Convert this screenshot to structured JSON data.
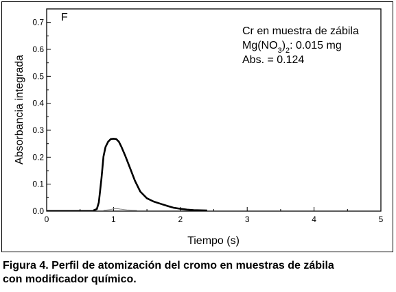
{
  "chart_data": {
    "type": "line",
    "panel_label": "F",
    "xlabel": "Tiempo (s)",
    "ylabel": "Absorbancia integrada",
    "xlim": [
      0,
      5
    ],
    "ylim": [
      0,
      0.75
    ],
    "xticks": [
      "0",
      "1",
      "2",
      "3",
      "4",
      "5"
    ],
    "yticks": [
      "0.0",
      "0.1",
      "0.2",
      "0.3",
      "0.4",
      "0.5",
      "0.6",
      "0.7"
    ],
    "grid": false,
    "annotations": {
      "line1": "Cr en muestra de zábila",
      "line2_main": "Mg(NO",
      "line2_sub": "3",
      "line2_close": ")",
      "line2_sub2": "2",
      "line2_rest": ": 0.015 mg",
      "line3": "Abs. = 0.124"
    },
    "series": [
      {
        "color": "#000000",
        "x": [
          0.7,
          0.75,
          0.78,
          0.82,
          0.85,
          0.88,
          0.92,
          0.96,
          1.0,
          1.04,
          1.08,
          1.12,
          1.18,
          1.25,
          1.32,
          1.4,
          1.5,
          1.6,
          1.7,
          1.8,
          1.9,
          2.0,
          2.1,
          2.2,
          2.4
        ],
        "y": [
          0.0,
          0.005,
          0.03,
          0.12,
          0.2,
          0.235,
          0.255,
          0.265,
          0.266,
          0.265,
          0.255,
          0.235,
          0.2,
          0.155,
          0.11,
          0.07,
          0.045,
          0.033,
          0.025,
          0.017,
          0.01,
          0.006,
          0.003,
          0.001,
          0.0
        ]
      },
      {
        "color": "#888888",
        "x": [
          0.85,
          0.95,
          1.0,
          1.05,
          1.1,
          1.2,
          1.35
        ],
        "y": [
          0.0,
          0.003,
          0.006,
          0.007,
          0.005,
          0.002,
          0.0
        ]
      }
    ]
  },
  "caption": {
    "line1": "Figura 4. Perfil de atomización del cromo en muestras de zábila",
    "line2": "con modificador químico."
  }
}
